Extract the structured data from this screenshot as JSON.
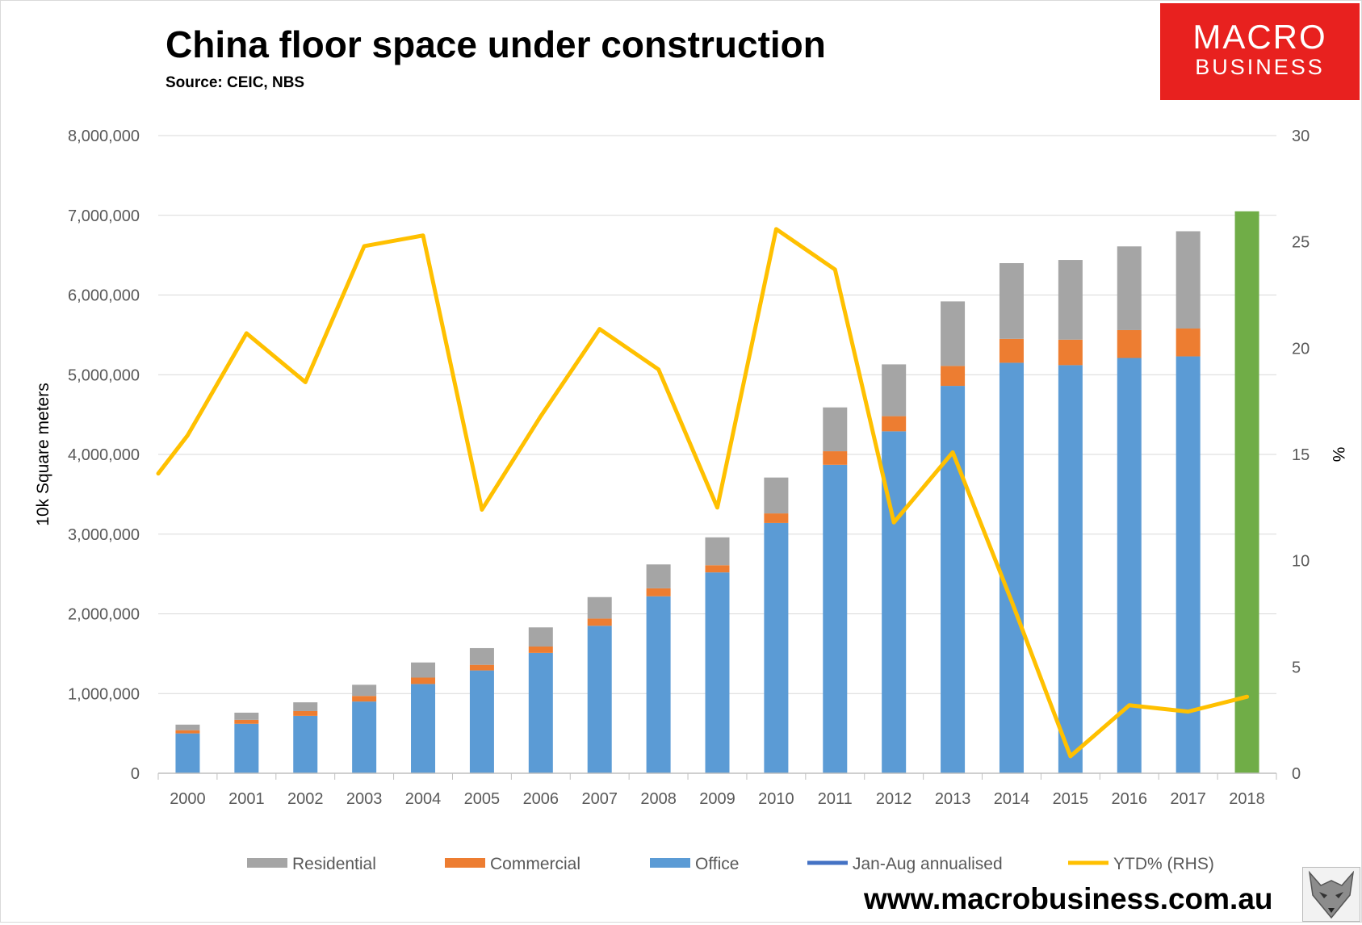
{
  "header": {
    "title": "China floor space under construction",
    "subtitle": "Source: CEIC, NBS"
  },
  "logo": {
    "line1": "MACRO",
    "line2": "BUSINESS"
  },
  "footer": {
    "website": "www.macrobusiness.com.au",
    "fox_icon": "fox-head-icon"
  },
  "colors": {
    "residential": "#a5a5a5",
    "commercial": "#ed7d31",
    "office": "#5b9bd5",
    "jan_aug": "#70ad47",
    "jan_aug_legend": "#4472c4",
    "ytd": "#ffc000",
    "logo_bg": "#e8211f"
  },
  "chart_data": {
    "type": "bar",
    "stacked": true,
    "categories": [
      "2000",
      "2001",
      "2002",
      "2003",
      "2004",
      "2005",
      "2006",
      "2007",
      "2008",
      "2009",
      "2010",
      "2011",
      "2012",
      "2013",
      "2014",
      "2015",
      "2016",
      "2017",
      "2018"
    ],
    "series": [
      {
        "name": "Residential",
        "axis": "left",
        "type": "bar",
        "values": [
          70000,
          90000,
          110000,
          140000,
          190000,
          210000,
          240000,
          270000,
          300000,
          350000,
          450000,
          550000,
          650000,
          810000,
          950000,
          1000000,
          1050000,
          1220000,
          null
        ]
      },
      {
        "name": "Commercial",
        "axis": "left",
        "type": "bar",
        "values": [
          40000,
          50000,
          60000,
          70000,
          80000,
          70000,
          80000,
          90000,
          100000,
          90000,
          120000,
          170000,
          190000,
          250000,
          300000,
          320000,
          350000,
          350000,
          null
        ]
      },
      {
        "name": "Office",
        "axis": "left",
        "type": "bar",
        "values": [
          500000,
          620000,
          720000,
          900000,
          1120000,
          1290000,
          1510000,
          1850000,
          2220000,
          2520000,
          3140000,
          3870000,
          4290000,
          4860000,
          5150000,
          5120000,
          5210000,
          5230000,
          null
        ]
      },
      {
        "name": "Jan-Aug annualised",
        "axis": "left",
        "type": "bar",
        "values": [
          null,
          null,
          null,
          null,
          null,
          null,
          null,
          null,
          null,
          null,
          null,
          null,
          null,
          null,
          null,
          null,
          null,
          null,
          7050000
        ]
      },
      {
        "name": "YTD% (RHS)",
        "axis": "right",
        "type": "line",
        "start_value": 14.1,
        "values": [
          15.9,
          20.7,
          18.4,
          24.8,
          25.3,
          12.4,
          16.8,
          20.9,
          19.0,
          12.5,
          25.6,
          23.7,
          11.8,
          15.1,
          8.1,
          0.8,
          3.2,
          2.9,
          3.6
        ]
      }
    ],
    "ylabel": "10k Square meters",
    "ylabel_right": "%",
    "ylim": [
      0,
      8000000
    ],
    "yticks": [
      "0",
      "1,000,000",
      "2,000,000",
      "3,000,000",
      "4,000,000",
      "5,000,000",
      "6,000,000",
      "7,000,000",
      "8,000,000"
    ],
    "ylim_right": [
      0,
      30
    ],
    "yticks_right": [
      "0",
      "5",
      "10",
      "15",
      "20",
      "25",
      "30"
    ],
    "grid": true,
    "legend": [
      "Residential",
      "Commercial",
      "Office",
      "Jan-Aug annualised",
      "YTD% (RHS)"
    ],
    "legend_position": "bottom"
  }
}
